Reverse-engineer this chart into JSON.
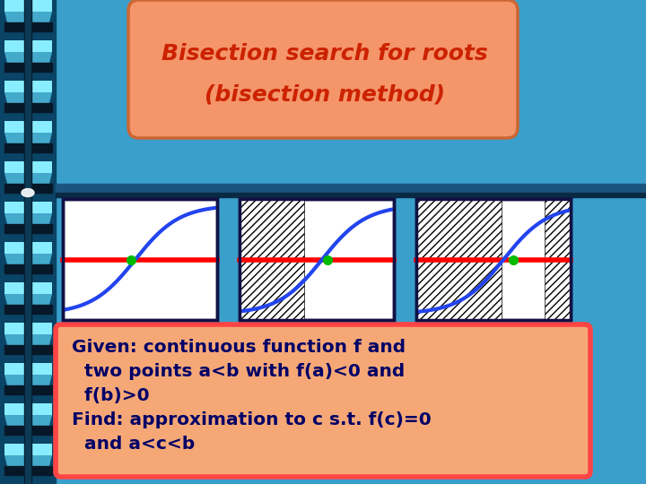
{
  "title_line1": "Bisection search for roots",
  "title_line2": "(bisection method)",
  "title_bg_color": "#F4956A",
  "title_text_color": "#CC2200",
  "main_bg_color": "#3B9FCC",
  "box_bg_color": "#F5A876",
  "box_border_color": "#FF4444",
  "box_text_color": "#000066",
  "text_line1": "Given: continuous function f and",
  "text_line2": "  two points a<b with f(a)<0 and",
  "text_line3": "  f(b)>0",
  "text_line4": "Find: approximation to c s.t. f(c)=0",
  "text_line5": "  and a<c<b",
  "curve_color": "#2244EE",
  "line_color": "#FF0000",
  "dot_color": "#00BB00",
  "panel_border_color": "#111144",
  "panel_bg_color": "#FFFFFF",
  "hatch_bg_color": "#DDDDDD",
  "sep_bar_color": "#1A5580",
  "sep_bar2_color": "#0A2A44",
  "spiral_light": "#88EEFF",
  "spiral_mid": "#44AACC",
  "spiral_dark": "#0A4466",
  "spiral_darkest": "#061828"
}
